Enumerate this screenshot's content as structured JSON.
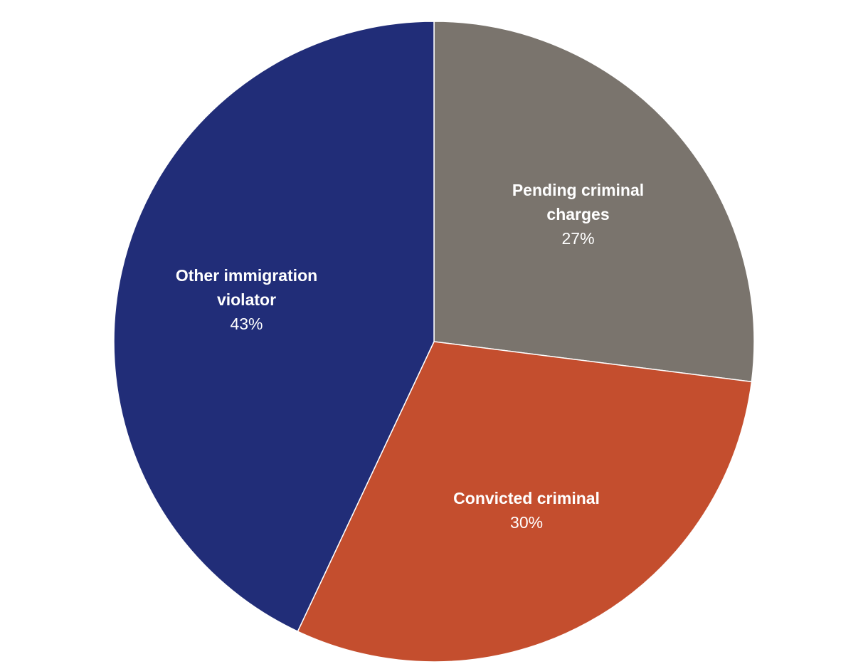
{
  "chart_data": {
    "type": "pie",
    "categories": [
      "Pending criminal charges",
      "Convicted criminal",
      "Other immigration violator"
    ],
    "values": [
      27,
      30,
      43
    ],
    "value_labels": [
      "27%",
      "30%",
      "43%"
    ],
    "colors": [
      "#7a746d",
      "#c44e2e",
      "#212d78"
    ]
  }
}
